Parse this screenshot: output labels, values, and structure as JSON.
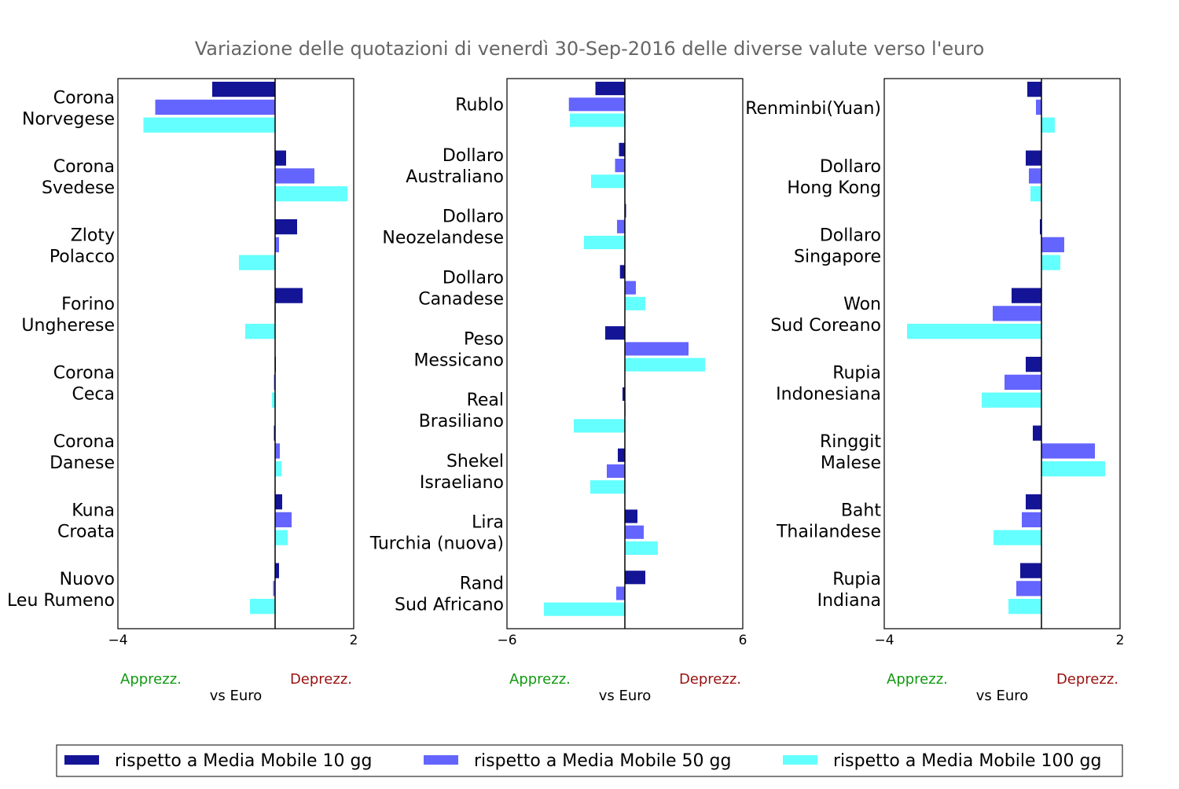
{
  "title": "Variazione delle quotazioni di venerdì 30-Sep-2016 delle diverse valute verso l'euro",
  "colors": {
    "title": "#666666",
    "ma10": "#141496",
    "ma50": "#6464ff",
    "ma100": "#64ffff",
    "apprezz": "#119911",
    "deprezz": "#991111",
    "axis": "#000000"
  },
  "legend": {
    "placement": "bottom",
    "items": [
      {
        "key": "ma10",
        "label": "rispetto a Media Mobile 10 gg"
      },
      {
        "key": "ma50",
        "label": "rispetto a Media Mobile 50 gg"
      },
      {
        "key": "ma100",
        "label": "rispetto a Media Mobile 100 gg"
      }
    ]
  },
  "chart_data": [
    {
      "type": "bar",
      "orientation": "horizontal",
      "xlim": [
        -4,
        2
      ],
      "xticks": [
        "−4",
        "2"
      ],
      "xlabel": "vs Euro",
      "left_note": "Apprezz.",
      "right_note": "Deprezz.",
      "categories": [
        [
          "Corona",
          "Norvegese"
        ],
        [
          "Corona",
          "Svedese"
        ],
        [
          "Zloty",
          "Polacco"
        ],
        [
          "Forino",
          "Ungherese"
        ],
        [
          "Corona",
          "Ceca"
        ],
        [
          "Corona",
          "Danese"
        ],
        [
          "Kuna",
          "Croata"
        ],
        [
          "Nuovo",
          "Leu Rumeno"
        ]
      ],
      "series": [
        {
          "key": "ma10",
          "values": [
            -1.6,
            0.28,
            0.56,
            0.7,
            0.02,
            -0.03,
            0.18,
            0.1
          ]
        },
        {
          "key": "ma50",
          "values": [
            -3.05,
            1.0,
            0.1,
            0.0,
            -0.03,
            0.12,
            0.42,
            -0.05
          ]
        },
        {
          "key": "ma100",
          "values": [
            -3.35,
            1.84,
            -0.92,
            -0.76,
            -0.08,
            0.16,
            0.32,
            -0.64
          ]
        }
      ]
    },
    {
      "type": "bar",
      "orientation": "horizontal",
      "xlim": [
        -6,
        6
      ],
      "xticks": [
        "−6",
        "6"
      ],
      "xlabel": "vs Euro",
      "left_note": "Apprezz.",
      "right_note": "Deprezz.",
      "categories": [
        [
          "Rublo"
        ],
        [
          "Dollaro",
          "Australiano"
        ],
        [
          "Dollaro",
          "Neozelandese"
        ],
        [
          "Dollaro",
          "Canadese"
        ],
        [
          "Peso",
          "Messicano"
        ],
        [
          "Real",
          "Brasiliano"
        ],
        [
          "Shekel",
          "Israeliano"
        ],
        [
          "Lira",
          "Turchia (nuova)"
        ],
        [
          "Rand",
          "Sud Africano"
        ]
      ],
      "series": [
        {
          "key": "ma10",
          "values": [
            -1.5,
            -0.3,
            0.06,
            -0.25,
            -1.0,
            -0.12,
            -0.36,
            0.64,
            1.04
          ]
        },
        {
          "key": "ma50",
          "values": [
            -2.85,
            -0.5,
            -0.4,
            0.56,
            3.24,
            0.03,
            -0.92,
            0.96,
            -0.44
          ]
        },
        {
          "key": "ma100",
          "values": [
            -2.8,
            -1.72,
            -2.08,
            1.04,
            4.08,
            -2.6,
            -1.76,
            1.68,
            -4.12
          ]
        }
      ]
    },
    {
      "type": "bar",
      "orientation": "horizontal",
      "xlim": [
        -4,
        2
      ],
      "xticks": [
        "−4",
        "2"
      ],
      "xlabel": "vs Euro",
      "left_note": "Apprezz.",
      "right_note": "Deprezz.",
      "categories": [
        [
          "Renminbi(Yuan)"
        ],
        [
          "Dollaro",
          "Hong Kong"
        ],
        [
          "Dollaro",
          "Singapore"
        ],
        [
          "Won",
          "Sud Coreano"
        ],
        [
          "Rupia",
          "Indonesiana"
        ],
        [
          "Ringgit",
          "Malese"
        ],
        [
          "Baht",
          "Thailandese"
        ],
        [
          "Rupia",
          "Indiana"
        ]
      ],
      "series": [
        {
          "key": "ma10",
          "values": [
            -0.36,
            -0.4,
            -0.04,
            -0.76,
            -0.4,
            -0.22,
            -0.4,
            -0.54
          ]
        },
        {
          "key": "ma50",
          "values": [
            -0.14,
            -0.32,
            0.58,
            -1.24,
            -0.94,
            1.36,
            -0.5,
            -0.64
          ]
        },
        {
          "key": "ma100",
          "values": [
            0.34,
            -0.28,
            0.48,
            -3.42,
            -1.52,
            1.62,
            -1.22,
            -0.84
          ]
        }
      ]
    }
  ]
}
